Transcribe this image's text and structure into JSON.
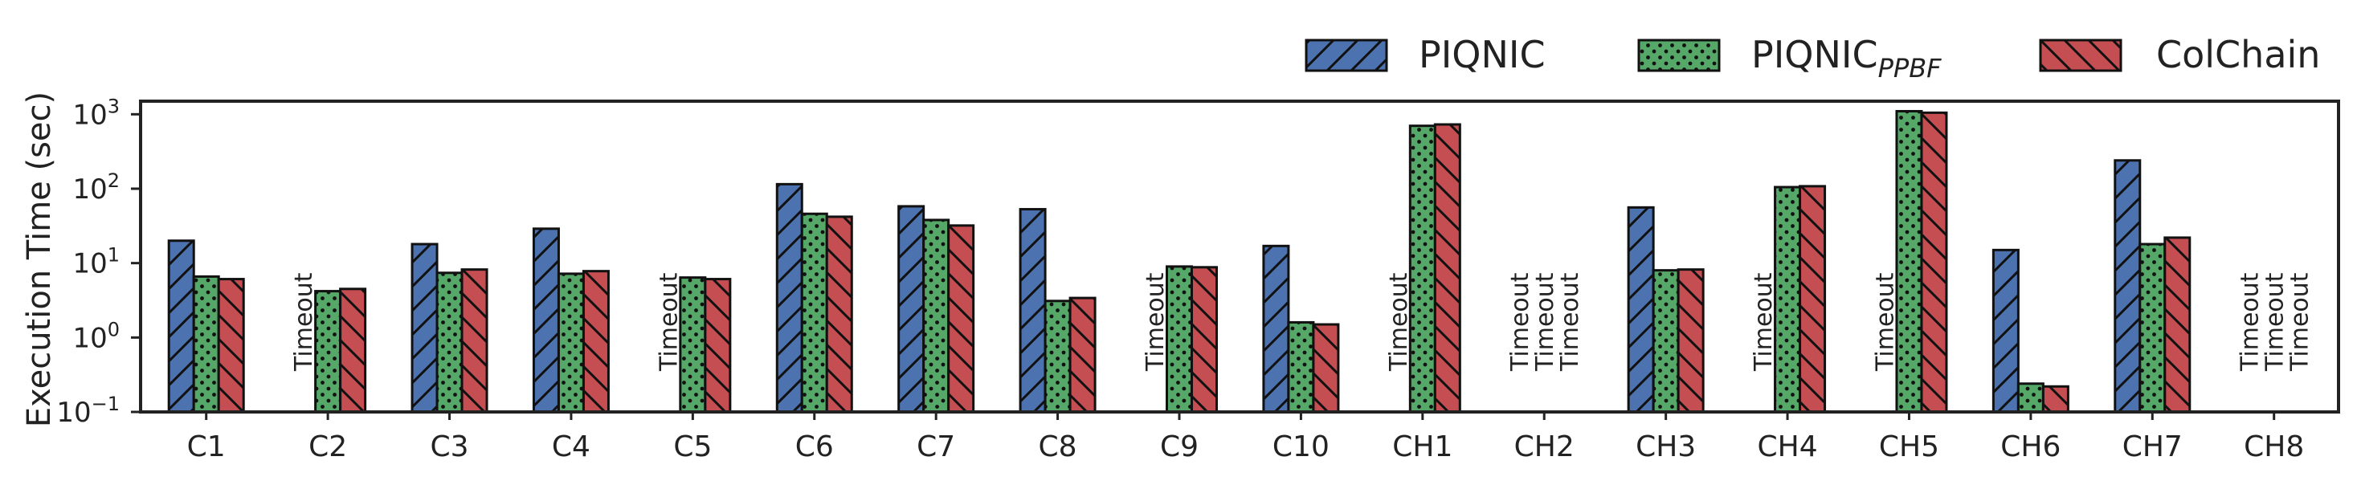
{
  "chart_data": {
    "type": "bar",
    "title": "",
    "xlabel": "",
    "ylabel": "Execution Time (sec)",
    "yscale": "log",
    "ylim": [
      0.1,
      1500
    ],
    "y_ticks": [
      {
        "value": 0.1,
        "base": "10",
        "exp": "−1"
      },
      {
        "value": 1,
        "base": "10",
        "exp": "0"
      },
      {
        "value": 10,
        "base": "10",
        "exp": "1"
      },
      {
        "value": 100,
        "base": "10",
        "exp": "2"
      },
      {
        "value": 1000,
        "base": "10",
        "exp": "3"
      }
    ],
    "grid": false,
    "legend_position": "top-right, above plot",
    "timeout_label": "Timeout",
    "categories": [
      "C1",
      "C2",
      "C3",
      "C4",
      "C5",
      "C6",
      "C7",
      "C8",
      "C9",
      "C10",
      "CH1",
      "CH2",
      "CH3",
      "CH4",
      "CH5",
      "CH6",
      "CH7",
      "CH8"
    ],
    "series": [
      {
        "name": "PIQNIC",
        "name_sub": "",
        "color": "#4C72B0",
        "hatch": "forward-diagonal",
        "values": [
          20,
          null,
          18,
          29,
          null,
          115,
          58,
          53,
          null,
          17,
          null,
          null,
          56,
          null,
          null,
          15,
          240,
          null
        ]
      },
      {
        "name": "PIQNIC",
        "name_sub": "PPBF",
        "color": "#55A868",
        "hatch": "dots",
        "values": [
          6.6,
          4.2,
          7.4,
          7.2,
          6.4,
          46,
          38,
          3.1,
          9.0,
          1.6,
          700,
          null,
          8.0,
          105,
          1100,
          0.24,
          18,
          null
        ]
      },
      {
        "name": "ColChain",
        "name_sub": "",
        "color": "#C44E52",
        "hatch": "back-diagonal",
        "values": [
          6.1,
          4.5,
          8.2,
          7.8,
          6.1,
          42,
          32,
          3.4,
          8.8,
          1.5,
          730,
          null,
          8.2,
          108,
          1050,
          0.22,
          22,
          null
        ]
      }
    ]
  }
}
